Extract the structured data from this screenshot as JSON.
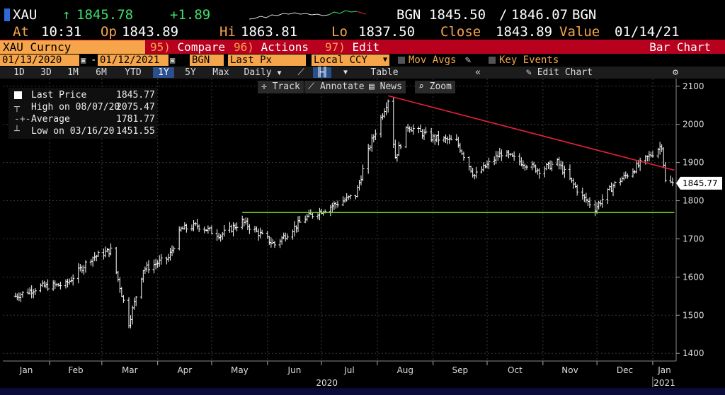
{
  "header": {
    "ticker": "XAU",
    "last_arrow": "↑",
    "last": "1845.78",
    "change": "+1.89",
    "bid_src": "BGN",
    "bid": "1845.50",
    "sep": "/",
    "ask": "1846.07",
    "ask_src": "BGN",
    "at_label": "At",
    "time": "10:31",
    "op_label": "Op",
    "open": "1843.89",
    "hi_label": "Hi",
    "high": "1863.81",
    "lo_label": "Lo",
    "low": "1837.50",
    "close_label": "Close",
    "close": "1843.89",
    "value_label": "Value",
    "value_date": "01/14/21"
  },
  "menu": {
    "security": "XAU Curncy",
    "compare_num": "95)",
    "compare": "Compare",
    "actions_num": "96)",
    "actions": "Actions",
    "edit_num": "97)",
    "edit": "Edit",
    "view": "Bar Chart"
  },
  "inputs": {
    "start_date": "01/13/2020",
    "dash": "-",
    "end_date": "01/12/2021",
    "source": "BGN",
    "field": "Last Px",
    "currency": "Local CCY",
    "mov_avgs": "Mov Avgs",
    "key_events": "Key Events"
  },
  "ranges": {
    "items": [
      "1D",
      "3D",
      "1M",
      "6M",
      "YTD",
      "1Y",
      "5Y",
      "Max"
    ],
    "active": "1Y",
    "period": "Daily",
    "table": "Table",
    "edit_chart": "Edit Chart"
  },
  "tools": {
    "track": "Track",
    "annotate": "Annotate",
    "news": "News",
    "zoom": "Zoom"
  },
  "legend": {
    "items": [
      {
        "label": "Last Price",
        "value": "1845.77"
      },
      {
        "label": "High on 08/07/20",
        "value": "2075.47"
      },
      {
        "label": "Average",
        "value": "1781.77"
      },
      {
        "label": "Low on 03/16/20",
        "value": "1451.55"
      }
    ]
  },
  "colors": {
    "accent": "#f6a54a",
    "menu_bar": "#b8001f",
    "price_bars": "#ffffff",
    "trendline": "#e8203c",
    "support": "#6ed62a"
  },
  "chart_data": {
    "type": "bar",
    "title": "",
    "xlabel": "",
    "ylabel": "",
    "ylim": [
      1380,
      2120
    ],
    "yticks": [
      1400,
      1500,
      1600,
      1700,
      1800,
      1900,
      2000,
      2100
    ],
    "last_price_label": "1845.77",
    "x_month_labels": [
      "Jan",
      "Feb",
      "Mar",
      "Apr",
      "May",
      "Jun",
      "Jul",
      "Aug",
      "Sep",
      "Oct",
      "Nov",
      "Dec",
      "Jan"
    ],
    "x_year_labels": [
      "2020",
      "2021"
    ],
    "series": [
      {
        "x": [
          "2020-01-13",
          "2020-01-27",
          "2020-02-10",
          "2020-02-24",
          "2020-03-06",
          "2020-03-16",
          "2020-03-24",
          "2020-04-07",
          "2020-04-14",
          "2020-04-23",
          "2020-05-06",
          "2020-05-18",
          "2020-06-05",
          "2020-06-22",
          "2020-07-06",
          "2020-07-20",
          "2020-07-28",
          "2020-08-07",
          "2020-08-11",
          "2020-08-18",
          "2020-08-31",
          "2020-09-14",
          "2020-09-24",
          "2020-10-09",
          "2020-10-30",
          "2020-11-09",
          "2020-11-23",
          "2020-11-30",
          "2020-12-10",
          "2020-12-21",
          "2021-01-06",
          "2021-01-08",
          "2021-01-12"
        ],
        "y": [
          1550,
          1575,
          1580,
          1650,
          1670,
          1480,
          1620,
          1650,
          1725,
          1735,
          1710,
          1745,
          1685,
          1755,
          1785,
          1815,
          1945,
          2065,
          1915,
          1995,
          1965,
          1955,
          1865,
          1925,
          1880,
          1900,
          1810,
          1780,
          1840,
          1880,
          1945,
          1850,
          1845
        ]
      }
    ],
    "trendline": {
      "x": [
        "2020-08-07",
        "2021-01-13"
      ],
      "y": [
        2075,
        1880
      ]
    },
    "support": {
      "x": [
        "2020-05-18",
        "2021-01-13"
      ],
      "y": [
        1769,
        1769
      ]
    }
  }
}
